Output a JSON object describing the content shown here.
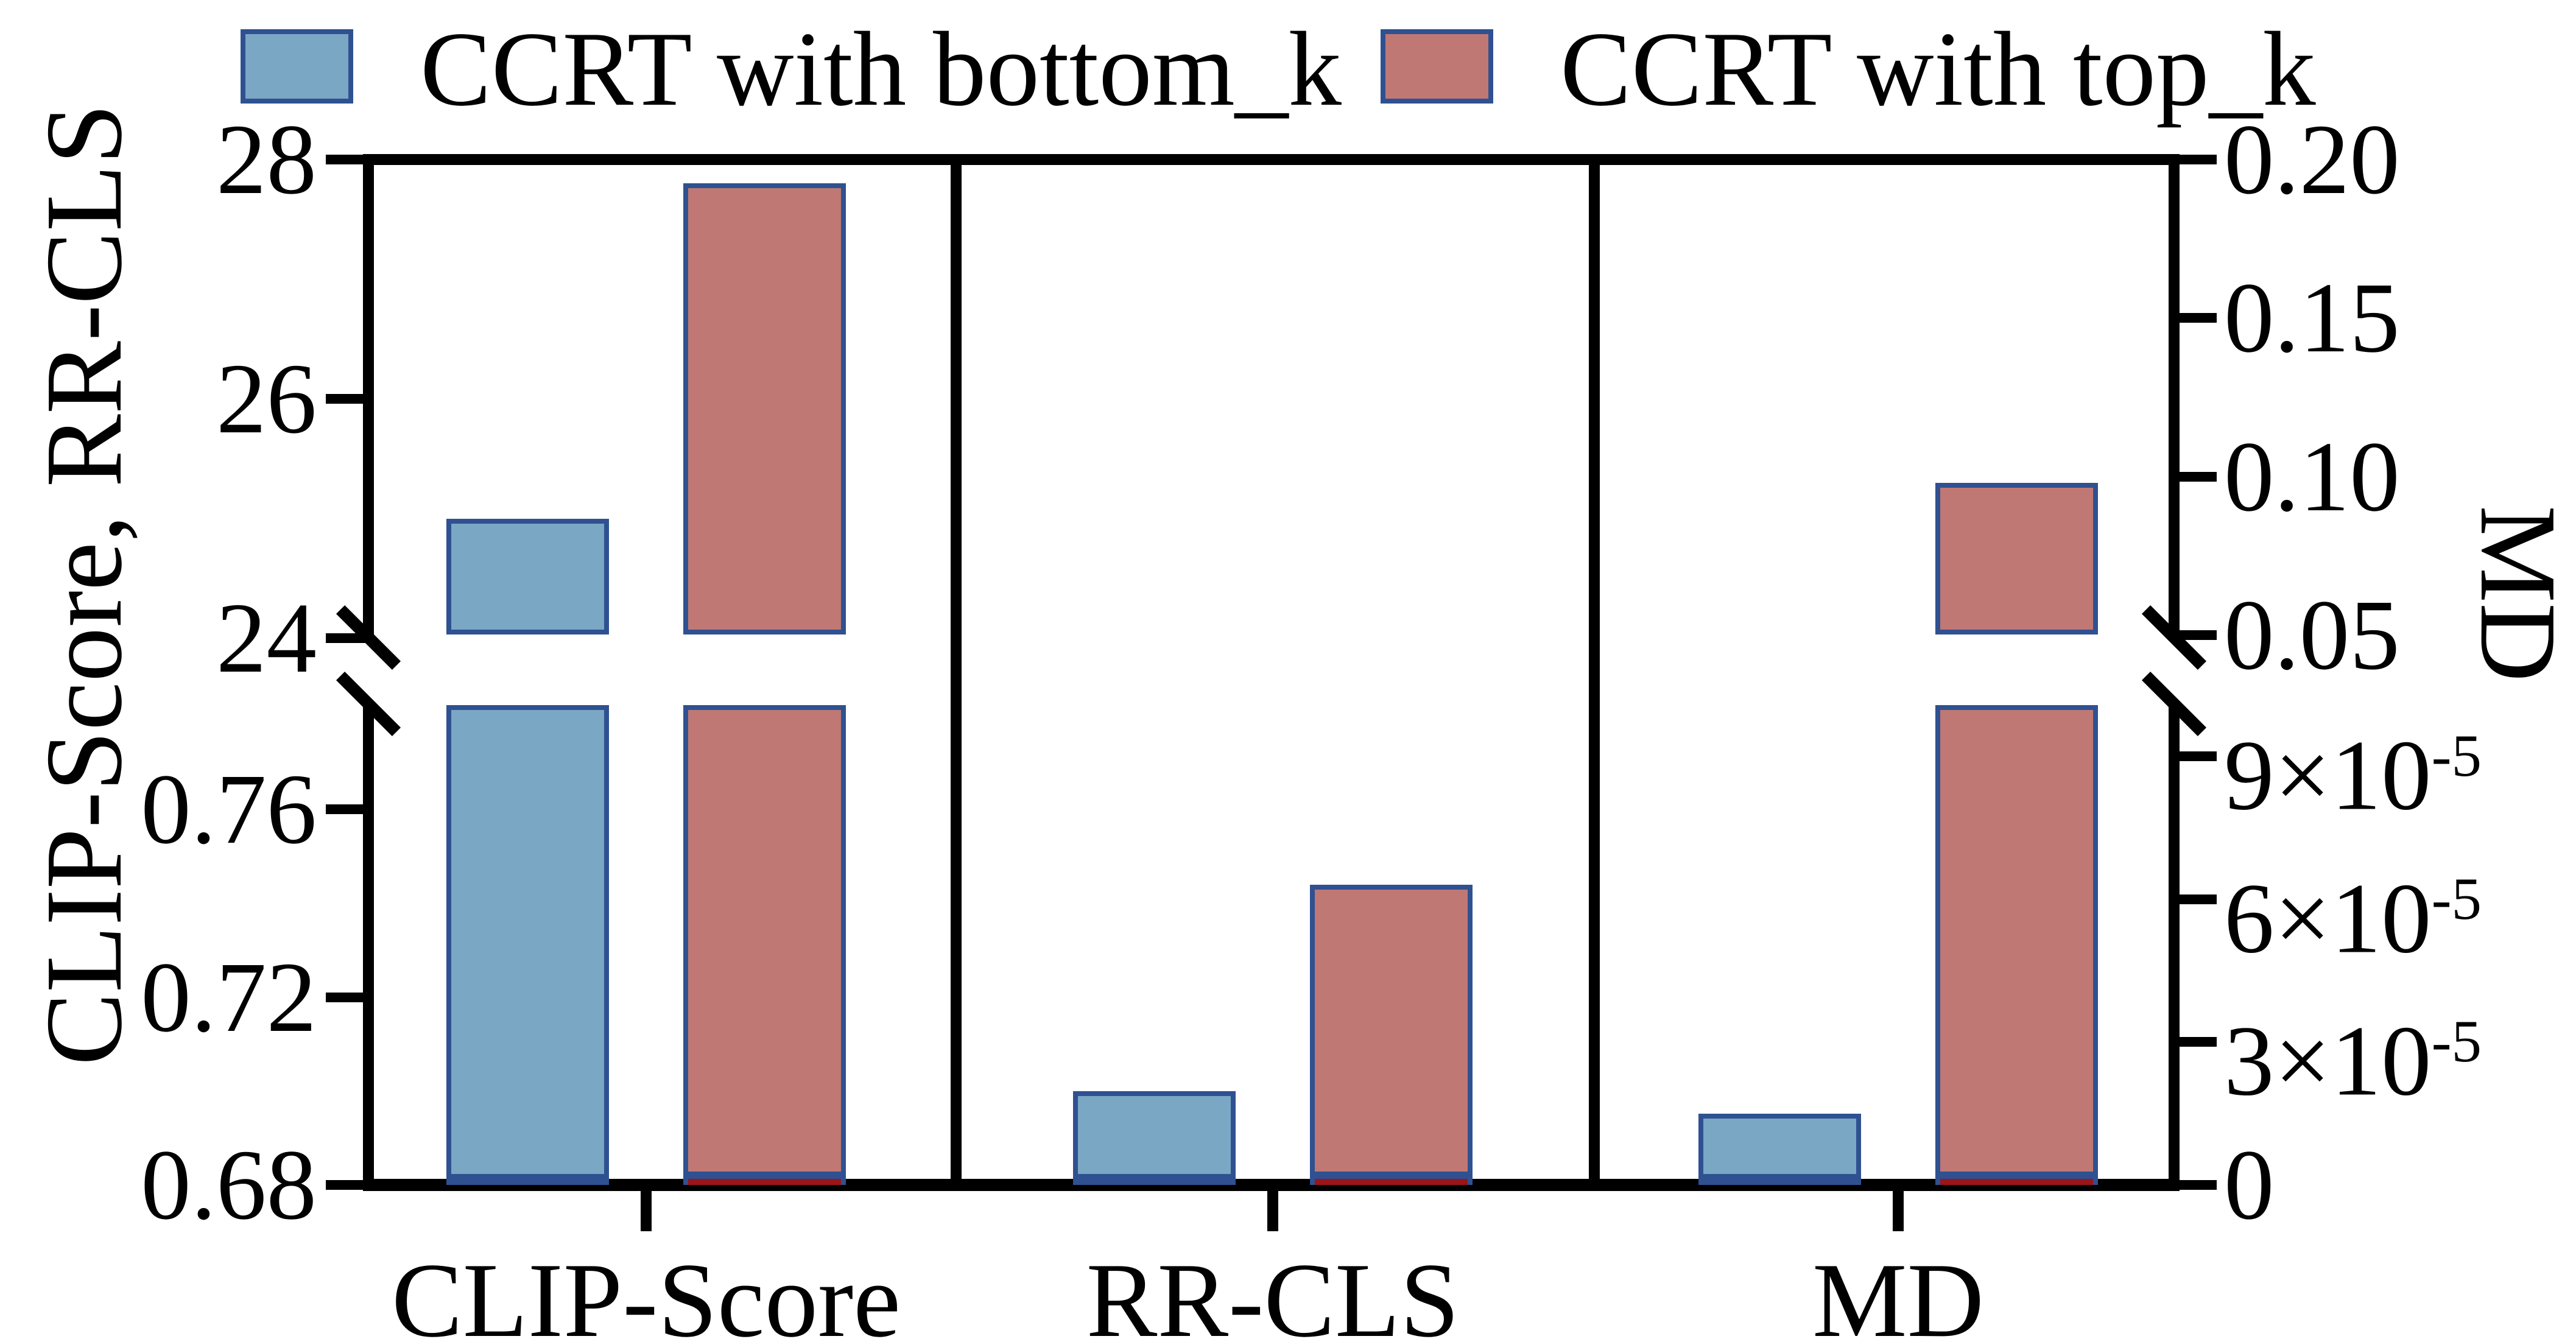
{
  "figure": {
    "background": "#ffffff"
  },
  "colors": {
    "series_blue": "#7AA7C4",
    "series_red": "#C07874",
    "bar_border_navy": "#2F5191",
    "red_bar_base_edge": "#9B1519",
    "axis_black": "#000000"
  },
  "legend": {
    "items": [
      {
        "label": "CCRT with bottom_k",
        "color": "#7AA7C4"
      },
      {
        "label": "CCRT with top_k",
        "color": "#C07874"
      }
    ]
  },
  "axes": {
    "left": {
      "title": "CLIP-Score, RR-CLS",
      "top_ticks": [
        {
          "value": 28,
          "label": "28"
        },
        {
          "value": 26,
          "label": "26"
        },
        {
          "value": 24,
          "label": "24"
        }
      ],
      "bottom_ticks": [
        {
          "value": 0.76,
          "label": "0.76"
        },
        {
          "value": 0.72,
          "label": "0.72"
        },
        {
          "value": 0.68,
          "label": "0.68"
        }
      ]
    },
    "right": {
      "title": "MD",
      "top_ticks": [
        {
          "value": 0.2,
          "label": "0.20"
        },
        {
          "value": 0.15,
          "label": "0.15"
        },
        {
          "value": 0.1,
          "label": "0.10"
        },
        {
          "value": 0.05,
          "label": "0.05"
        }
      ],
      "bottom_ticks": [
        {
          "value": 9e-05,
          "label": "9×10",
          "sup": "-5"
        },
        {
          "value": 6e-05,
          "label": "6×10",
          "sup": "-5"
        },
        {
          "value": 3e-05,
          "label": "3×10",
          "sup": "-5"
        },
        {
          "value": 0,
          "label": "0"
        }
      ]
    }
  },
  "chart_data": {
    "type": "bar",
    "title": "",
    "categories": [
      "CLIP-Score",
      "RR-CLS",
      "MD"
    ],
    "panel_axis": [
      "left",
      "left",
      "right"
    ],
    "series": [
      {
        "name": "CCRT with bottom_k",
        "color": "#7AA7C4",
        "values": [
          25.0,
          0.7,
          1.5e-05
        ]
      },
      {
        "name": "CCRT with top_k",
        "color": "#C07874",
        "values": [
          27.8,
          0.744,
          0.098
        ]
      }
    ],
    "left_axis": {
      "label": "CLIP-Score, RR-CLS",
      "top_segment_range": [
        24,
        28
      ],
      "bottom_segment_range": [
        0.68,
        0.7822
      ]
    },
    "right_axis": {
      "label": "MD",
      "top_segment_range": [
        0.05,
        0.2
      ],
      "bottom_segment_range": [
        0,
        0.0001008
      ]
    },
    "broken_axis": true,
    "grid": false,
    "legend_position": "top"
  }
}
